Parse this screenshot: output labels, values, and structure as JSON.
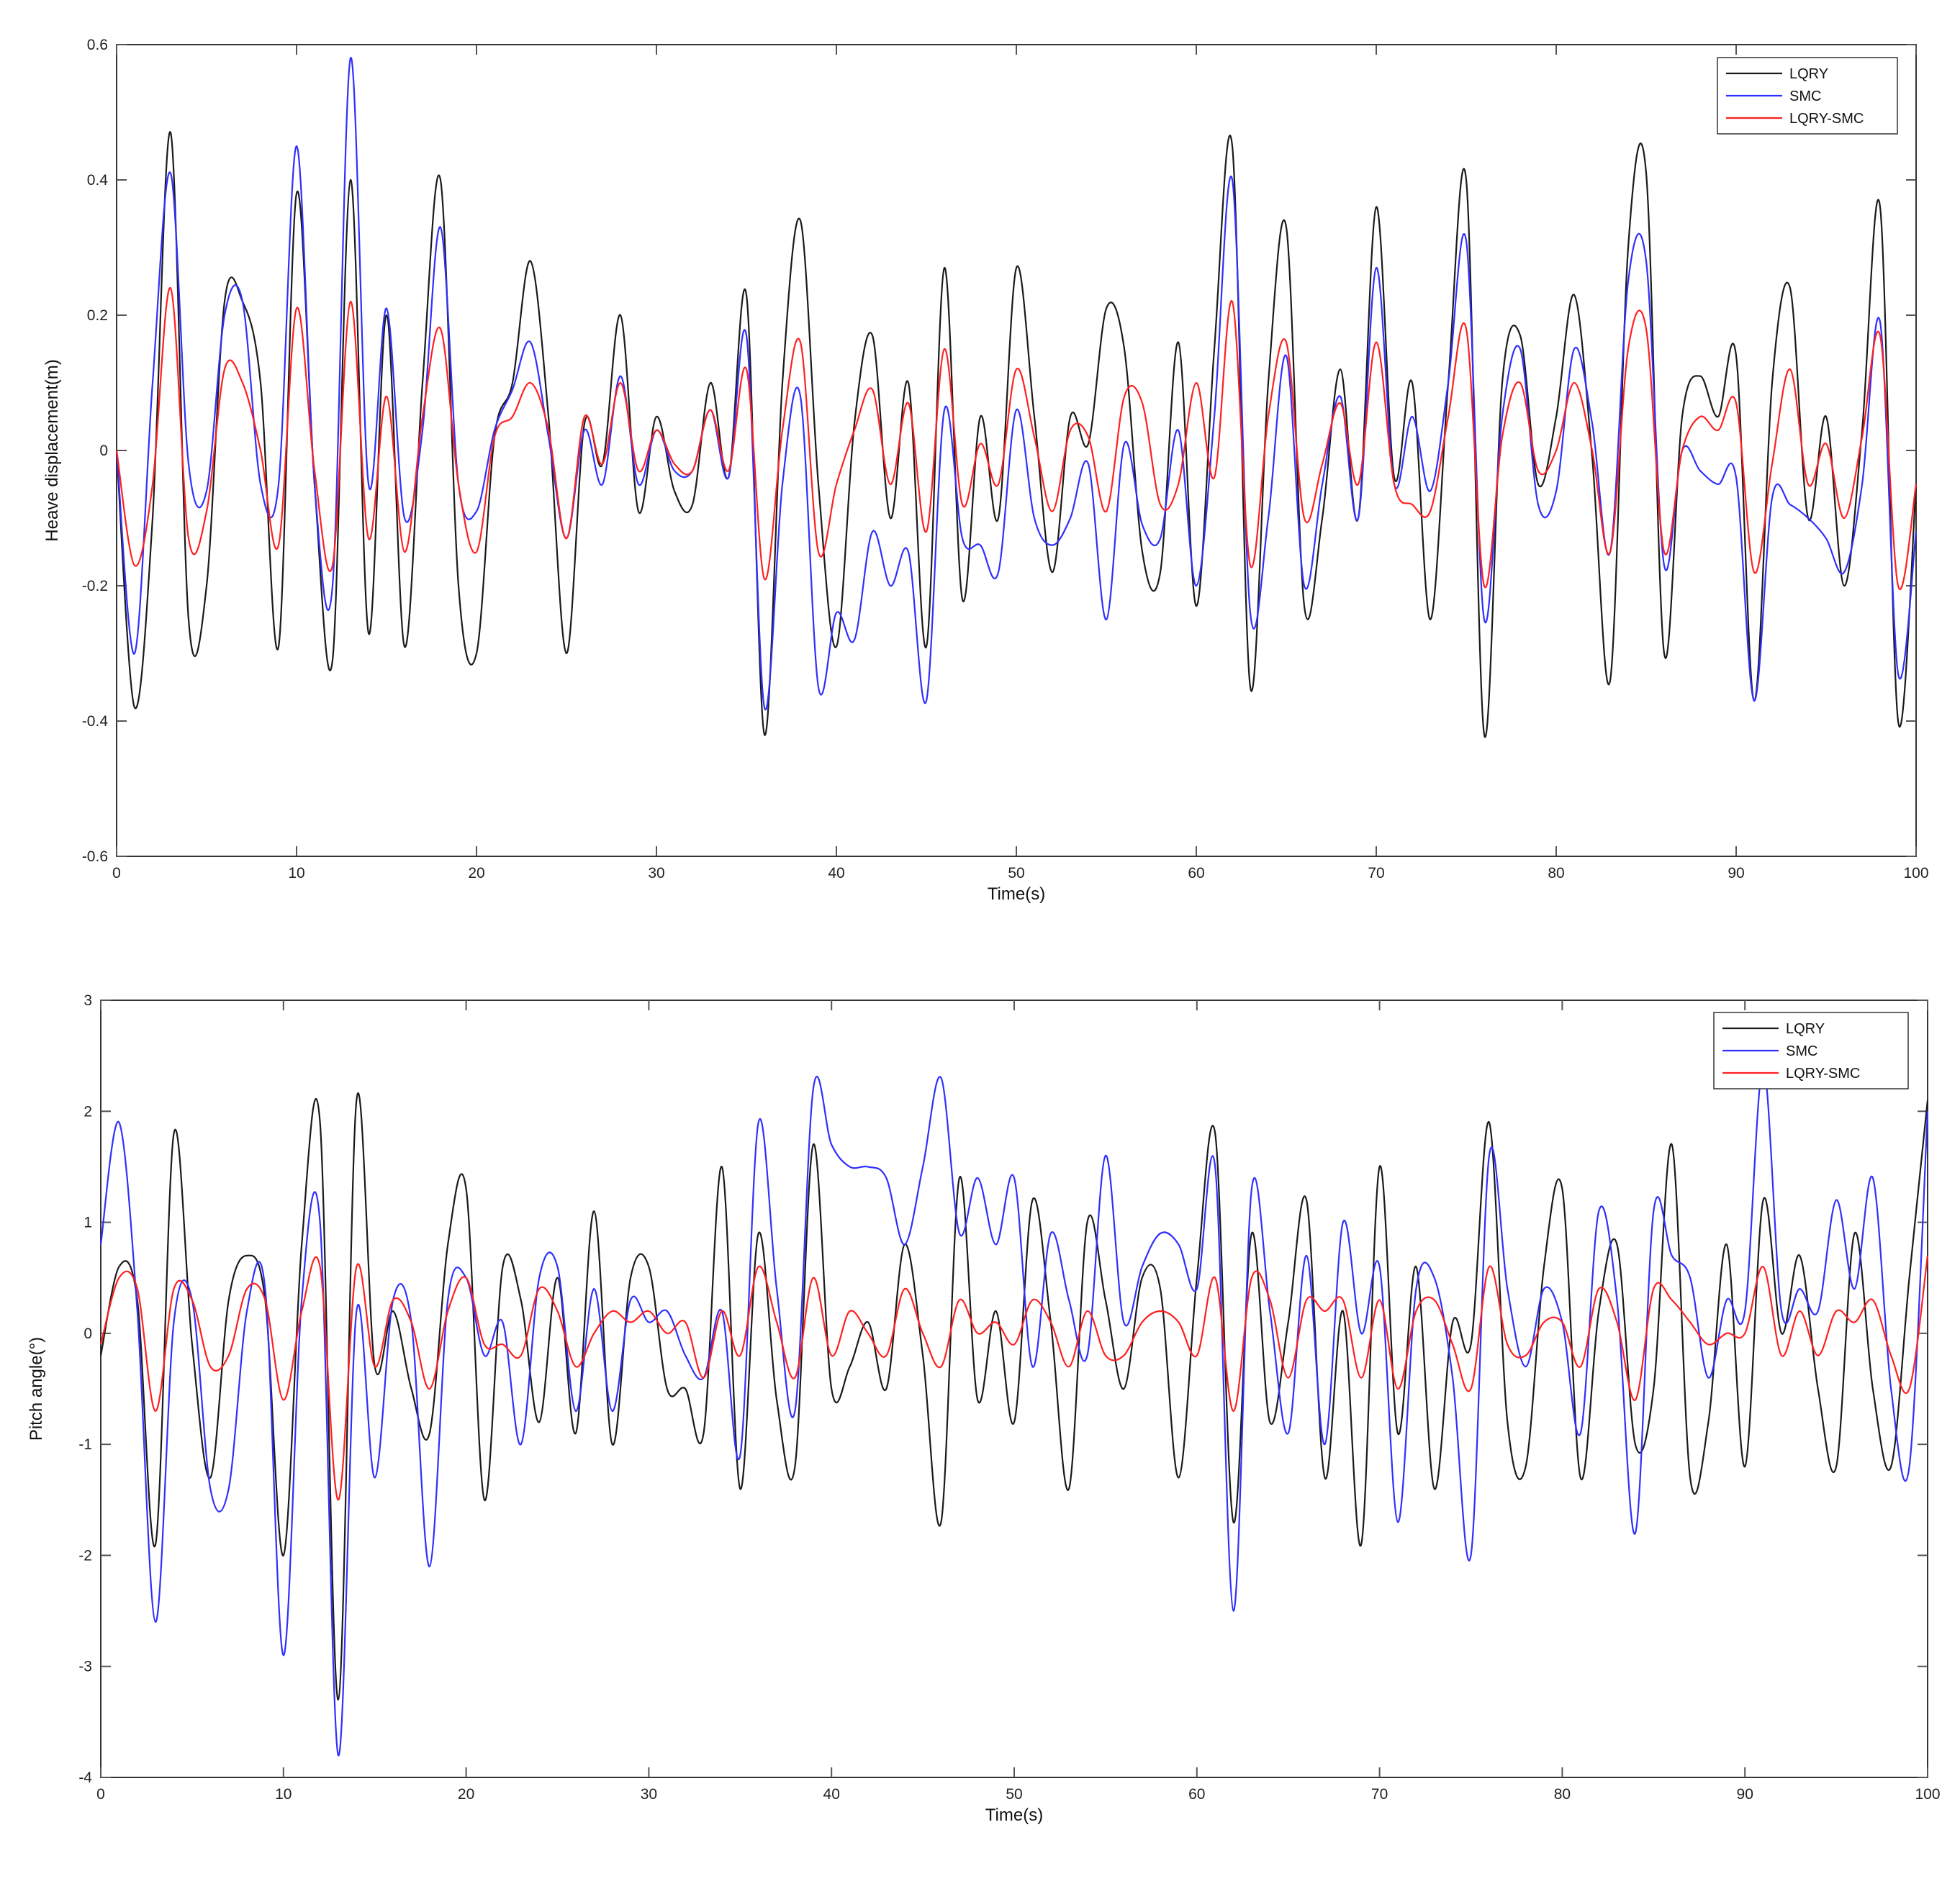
{
  "colors": {
    "LQRY": "#1a1a1a",
    "SMC": "#2f2fff",
    "LQRY-SMC": "#ff2020",
    "axis": "#333333",
    "grid_ticks": "#555555"
  },
  "chart_data": [
    {
      "type": "line",
      "xlabel": "Time(s)",
      "ylabel": "Heave displacement(m)",
      "xlim": [
        0,
        100
      ],
      "ylim": [
        -0.6,
        0.6
      ],
      "xticks": [
        "0",
        "10",
        "20",
        "30",
        "40",
        "50",
        "60",
        "70",
        "80",
        "90",
        "100"
      ],
      "yticks": [
        "-0.6",
        "-0.4",
        "-0.2",
        "0",
        "0.2",
        "0.4",
        "0.6"
      ],
      "legend_position": "top-right",
      "x": [
        0,
        1,
        2,
        3,
        4,
        5,
        6,
        7,
        8,
        9,
        10,
        11,
        12,
        13,
        14,
        15,
        16,
        17,
        18,
        19,
        20,
        21,
        22,
        23,
        24,
        25,
        26,
        27,
        28,
        29,
        30,
        31,
        32,
        33,
        34,
        35,
        36,
        37,
        38,
        39,
        40,
        41,
        42,
        43,
        44,
        45,
        46,
        47,
        48,
        49,
        50,
        51,
        52,
        53,
        54,
        55,
        56,
        57,
        58,
        59,
        60,
        61,
        62,
        63,
        64,
        65,
        66,
        67,
        68,
        69,
        70,
        71,
        72,
        73,
        74,
        75,
        76,
        77,
        78,
        79,
        80,
        81,
        82,
        83,
        84,
        85,
        86,
        87,
        88,
        89,
        90,
        91,
        92,
        93,
        94,
        95,
        96,
        97,
        98,
        99,
        100
      ],
      "series": [
        {
          "name": "LQRY",
          "values": [
            0,
            -0.38,
            -0.1,
            0.47,
            -0.25,
            -0.2,
            0.22,
            0.22,
            0.1,
            -0.29,
            0.38,
            -0.05,
            -0.31,
            0.4,
            -0.27,
            0.2,
            -0.29,
            0.1,
            0.4,
            -0.2,
            -0.3,
            0.02,
            0.1,
            0.28,
            0.05,
            -0.3,
            0.04,
            -0.02,
            0.2,
            -0.09,
            0.05,
            -0.06,
            -0.08,
            0.1,
            -0.04,
            0.23,
            -0.42,
            0.1,
            0.34,
            -0.05,
            -0.29,
            0.04,
            0.17,
            -0.1,
            0.1,
            -0.29,
            0.27,
            -0.22,
            0.05,
            -0.1,
            0.27,
            0.05,
            -0.18,
            0.05,
            0.01,
            0.21,
            0.15,
            -0.15,
            -0.18,
            0.16,
            -0.23,
            0.15,
            0.45,
            -0.35,
            0.1,
            0.33,
            -0.23,
            -0.1,
            0.12,
            -0.1,
            0.36,
            -0.04,
            0.1,
            -0.25,
            0.1,
            0.4,
            -0.42,
            0.1,
            0.17,
            -0.05,
            0.05,
            0.23,
            -0.01,
            -0.34,
            0.3,
            0.41,
            -0.3,
            0.05,
            0.11,
            0.05,
            0.14,
            -0.37,
            0.1,
            0.24,
            -0.1,
            0.05,
            -0.2,
            0.03,
            0.36,
            -0.4,
            -0.05
          ]
        },
        {
          "name": "SMC",
          "values": [
            0,
            -0.3,
            0.1,
            0.41,
            -0.02,
            -0.06,
            0.2,
            0.22,
            -0.05,
            -0.05,
            0.45,
            -0.05,
            -0.2,
            0.58,
            -0.05,
            0.21,
            -0.1,
            0.03,
            0.33,
            -0.05,
            -0.09,
            0.03,
            0.09,
            0.16,
            0.02,
            -0.13,
            0.03,
            -0.05,
            0.11,
            -0.05,
            0.03,
            -0.03,
            -0.03,
            0.06,
            -0.04,
            0.17,
            -0.38,
            -0.05,
            0.08,
            -0.35,
            -0.24,
            -0.28,
            -0.12,
            -0.2,
            -0.15,
            -0.37,
            0.06,
            -0.13,
            -0.14,
            -0.18,
            0.06,
            -0.1,
            -0.14,
            -0.1,
            -0.02,
            -0.25,
            0.01,
            -0.11,
            -0.13,
            0.03,
            -0.2,
            0.05,
            0.4,
            -0.24,
            -0.1,
            0.14,
            -0.2,
            -0.05,
            0.08,
            -0.1,
            0.27,
            -0.05,
            0.05,
            -0.06,
            0.1,
            0.31,
            -0.25,
            0.05,
            0.15,
            -0.08,
            -0.06,
            0.15,
            0.04,
            -0.15,
            0.25,
            0.28,
            -0.17,
            0.0,
            -0.03,
            -0.05,
            -0.04,
            -0.37,
            -0.07,
            -0.08,
            -0.1,
            -0.13,
            -0.18,
            -0.05,
            0.19,
            -0.33,
            -0.12
          ]
        },
        {
          "name": "LQRY-SMC",
          "values": [
            0,
            -0.17,
            -0.05,
            0.24,
            -0.13,
            -0.09,
            0.12,
            0.1,
            0.0,
            -0.14,
            0.21,
            -0.03,
            -0.17,
            0.22,
            -0.13,
            0.08,
            -0.15,
            0.05,
            0.18,
            -0.05,
            -0.15,
            0.02,
            0.05,
            0.1,
            0.03,
            -0.13,
            0.05,
            -0.02,
            0.1,
            -0.03,
            0.03,
            -0.02,
            -0.03,
            0.06,
            -0.03,
            0.12,
            -0.19,
            0.03,
            0.16,
            -0.15,
            -0.05,
            0.03,
            0.09,
            -0.05,
            0.07,
            -0.12,
            0.15,
            -0.08,
            0.01,
            -0.05,
            0.12,
            0.02,
            -0.09,
            0.03,
            0.02,
            -0.09,
            0.08,
            0.07,
            -0.08,
            -0.05,
            0.1,
            -0.04,
            0.22,
            -0.17,
            0.05,
            0.16,
            -0.1,
            -0.02,
            0.07,
            -0.05,
            0.16,
            -0.05,
            -0.08,
            -0.09,
            0.05,
            0.18,
            -0.2,
            0.02,
            0.1,
            -0.03,
            0.0,
            0.1,
            0.0,
            -0.15,
            0.15,
            0.18,
            -0.15,
            0.0,
            0.05,
            0.03,
            0.07,
            -0.18,
            -0.02,
            0.12,
            -0.05,
            0.01,
            -0.1,
            0.02,
            0.17,
            -0.2,
            -0.05
          ]
        }
      ]
    },
    {
      "type": "line",
      "xlabel": "Time(s)",
      "ylabel": "Pitch angle(°)",
      "xlim": [
        0,
        100
      ],
      "ylim": [
        -4,
        3
      ],
      "xticks": [
        "0",
        "10",
        "20",
        "30",
        "40",
        "50",
        "60",
        "70",
        "80",
        "90",
        "100"
      ],
      "yticks": [
        "-4",
        "-3",
        "-2",
        "-1",
        "0",
        "1",
        "2",
        "3"
      ],
      "legend_position": "top-right",
      "x": [
        0,
        1,
        2,
        3,
        4,
        5,
        6,
        7,
        8,
        9,
        10,
        11,
        12,
        13,
        14,
        15,
        16,
        17,
        18,
        19,
        20,
        21,
        22,
        23,
        24,
        25,
        26,
        27,
        28,
        29,
        30,
        31,
        32,
        33,
        34,
        35,
        36,
        37,
        38,
        39,
        40,
        41,
        42,
        43,
        44,
        45,
        46,
        47,
        48,
        49,
        50,
        51,
        52,
        53,
        54,
        55,
        56,
        57,
        58,
        59,
        60,
        61,
        62,
        63,
        64,
        65,
        66,
        67,
        68,
        69,
        70,
        71,
        72,
        73,
        74,
        75,
        76,
        77,
        78,
        79,
        80,
        81,
        82,
        83,
        84,
        85,
        86,
        87,
        88,
        89,
        90,
        91,
        92,
        93,
        94,
        95,
        96,
        97,
        98,
        99,
        100
      ],
      "series": [
        {
          "name": "LQRY",
          "values": [
            -0.2,
            0.6,
            0.3,
            -1.9,
            1.8,
            -0.1,
            -1.3,
            0.3,
            0.7,
            0.3,
            -2.0,
            0.8,
            1.9,
            -3.3,
            2.1,
            -0.3,
            0.2,
            -0.5,
            -0.9,
            0.8,
            1.3,
            -1.5,
            0.6,
            0.3,
            -0.8,
            0.5,
            -0.9,
            1.1,
            -1.0,
            0.5,
            0.6,
            -0.5,
            -0.5,
            -0.9,
            1.5,
            -1.4,
            0.9,
            -0.6,
            -1.2,
            1.7,
            -0.5,
            -0.3,
            0.1,
            -0.5,
            0.8,
            -0.2,
            -1.7,
            1.4,
            -0.6,
            0.2,
            -0.8,
            1.2,
            0.1,
            -1.4,
            1.0,
            0.3,
            -0.5,
            0.5,
            0.4,
            -1.3,
            0.5,
            1.8,
            -1.7,
            0.9,
            -0.8,
            0.1,
            1.2,
            -1.3,
            0.2,
            -1.9,
            1.5,
            -0.9,
            0.6,
            -1.4,
            0.1,
            -0.1,
            1.9,
            -0.8,
            -1.2,
            0.6,
            1.3,
            -1.3,
            0.2,
            0.8,
            -1.0,
            -0.5,
            1.7,
            -1.3,
            -0.8,
            0.8,
            -1.2,
            1.2,
            0.0,
            0.7,
            -0.5,
            -1.2,
            0.9,
            -0.5,
            -1.2,
            0.5,
            2.1
          ]
        },
        {
          "name": "SMC",
          "values": [
            0.8,
            1.9,
            0.2,
            -2.6,
            0.1,
            0.3,
            -1.4,
            -1.4,
            0.2,
            0.4,
            -2.9,
            0.3,
            1.0,
            -3.8,
            0.2,
            -1.3,
            0.3,
            0.1,
            -2.1,
            0.3,
            0.5,
            -0.2,
            0.1,
            -1.0,
            0.5,
            0.6,
            -0.7,
            0.4,
            -0.7,
            0.3,
            0.1,
            0.2,
            -0.2,
            -0.4,
            0.2,
            -1.1,
            1.9,
            0.4,
            -0.7,
            2.2,
            1.7,
            1.5,
            1.5,
            1.4,
            0.8,
            1.5,
            2.3,
            0.9,
            1.4,
            0.8,
            1.4,
            -0.3,
            0.9,
            0.3,
            -0.2,
            1.6,
            0.1,
            0.6,
            0.9,
            0.8,
            0.4,
            1.5,
            -2.5,
            1.3,
            0.2,
            -0.9,
            0.7,
            -1.0,
            1.0,
            0.0,
            0.6,
            -1.7,
            0.4,
            0.5,
            -0.4,
            -2.0,
            1.6,
            0.4,
            -0.3,
            0.4,
            0.1,
            -0.9,
            1.1,
            0.3,
            -1.8,
            1.1,
            0.7,
            0.5,
            -0.4,
            0.3,
            0.2,
            2.4,
            0.2,
            0.4,
            0.2,
            1.2,
            0.4,
            1.4,
            -0.5,
            -1.2,
            2.0
          ]
        },
        {
          "name": "LQRY-SMC",
          "values": [
            -0.1,
            0.5,
            0.4,
            -0.7,
            0.4,
            0.3,
            -0.3,
            -0.2,
            0.4,
            0.3,
            -0.6,
            0.2,
            0.6,
            -1.5,
            0.6,
            -0.3,
            0.3,
            0.1,
            -0.5,
            0.2,
            0.5,
            -0.1,
            -0.1,
            -0.2,
            0.4,
            0.2,
            -0.3,
            0.0,
            0.2,
            0.1,
            0.2,
            0.0,
            0.1,
            -0.4,
            0.2,
            -0.2,
            0.6,
            0.1,
            -0.4,
            0.5,
            -0.2,
            0.2,
            0.0,
            -0.2,
            0.4,
            0.0,
            -0.3,
            0.3,
            0.0,
            0.1,
            -0.1,
            0.3,
            0.1,
            -0.3,
            0.2,
            -0.2,
            -0.2,
            0.1,
            0.2,
            0.1,
            -0.2,
            0.5,
            -0.7,
            0.5,
            0.3,
            -0.4,
            0.3,
            0.2,
            0.3,
            -0.4,
            0.3,
            -0.5,
            0.2,
            0.3,
            -0.1,
            -0.5,
            0.6,
            -0.1,
            -0.2,
            0.1,
            0.1,
            -0.3,
            0.4,
            0.1,
            -0.6,
            0.4,
            0.3,
            0.1,
            -0.1,
            0.0,
            0.0,
            0.6,
            -0.2,
            0.2,
            -0.2,
            0.2,
            0.1,
            0.3,
            -0.2,
            -0.5,
            0.7
          ]
        }
      ]
    }
  ]
}
